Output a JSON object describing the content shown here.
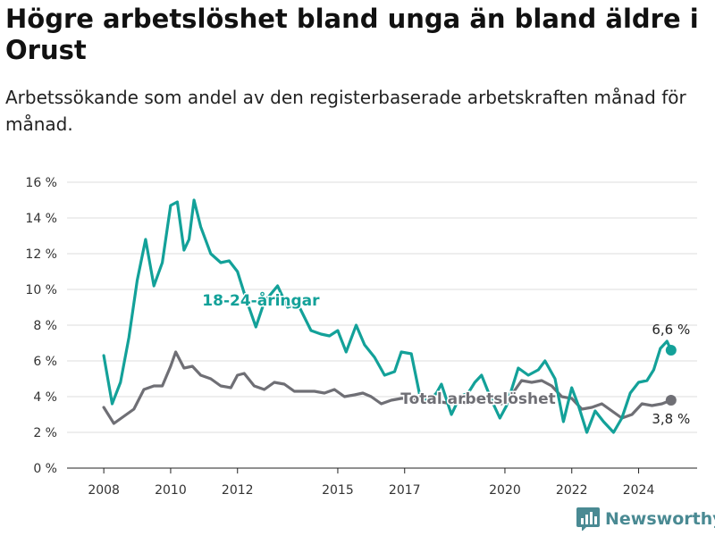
{
  "title": "Högre arbetslöshet bland unga än bland äldre i Orust",
  "subtitle": "Arbetssökande som andel av den registerbaserade arbetskraften månad för månad.",
  "brand": {
    "name": "Newsworthy"
  },
  "colors": {
    "youth": "#13a199",
    "total": "#6f6f75",
    "grid": "#dddddd",
    "axis": "#222222",
    "brand": "#4a8a93"
  },
  "chart_data": {
    "type": "line",
    "title": "Högre arbetslöshet bland unga än bland äldre i Orust",
    "subtitle": "Arbetssökande som andel av den registerbaserade arbetskraften månad för månad.",
    "y_ticks": [
      0,
      2,
      4,
      6,
      8,
      10,
      12,
      14,
      16
    ],
    "y_tick_labels": [
      "0 %",
      "2 %",
      "4 %",
      "6 %",
      "8 %",
      "10 %",
      "12 %",
      "14 %",
      "16 %"
    ],
    "x_ticks": [
      2008,
      2010,
      2012,
      2015,
      2017,
      2020,
      2022,
      2024
    ],
    "ylim": [
      0,
      16
    ],
    "xlim": [
      2006.9,
      2025.75
    ],
    "grid": true,
    "series": [
      {
        "name": "18-24-åringar",
        "color": "#13a199",
        "end_label": "6,6 %",
        "points": [
          [
            2008.0,
            6.3
          ],
          [
            2008.25,
            3.6
          ],
          [
            2008.5,
            4.8
          ],
          [
            2008.75,
            7.3
          ],
          [
            2009.0,
            10.5
          ],
          [
            2009.25,
            12.8
          ],
          [
            2009.5,
            10.2
          ],
          [
            2009.75,
            11.5
          ],
          [
            2010.0,
            14.7
          ],
          [
            2010.2,
            14.9
          ],
          [
            2010.4,
            12.2
          ],
          [
            2010.55,
            12.8
          ],
          [
            2010.7,
            15.0
          ],
          [
            2010.9,
            13.5
          ],
          [
            2011.2,
            12.0
          ],
          [
            2011.5,
            11.5
          ],
          [
            2011.75,
            11.6
          ],
          [
            2012.0,
            11.0
          ],
          [
            2012.25,
            9.5
          ],
          [
            2012.55,
            7.9
          ],
          [
            2012.8,
            9.3
          ],
          [
            2013.2,
            10.2
          ],
          [
            2013.5,
            9.0
          ],
          [
            2013.8,
            9.2
          ],
          [
            2014.2,
            7.7
          ],
          [
            2014.5,
            7.5
          ],
          [
            2014.75,
            7.4
          ],
          [
            2015.0,
            7.7
          ],
          [
            2015.25,
            6.5
          ],
          [
            2015.55,
            8.0
          ],
          [
            2015.8,
            6.9
          ],
          [
            2016.1,
            6.2
          ],
          [
            2016.4,
            5.2
          ],
          [
            2016.7,
            5.4
          ],
          [
            2016.9,
            6.5
          ],
          [
            2017.2,
            6.4
          ],
          [
            2017.45,
            4.1
          ],
          [
            2017.7,
            3.7
          ],
          [
            2017.95,
            4.2
          ],
          [
            2018.1,
            4.7
          ],
          [
            2018.4,
            3.0
          ],
          [
            2018.65,
            4.0
          ],
          [
            2018.9,
            4.2
          ],
          [
            2019.1,
            4.8
          ],
          [
            2019.3,
            5.2
          ],
          [
            2019.6,
            3.8
          ],
          [
            2019.85,
            2.8
          ],
          [
            2020.05,
            3.5
          ],
          [
            2020.4,
            5.6
          ],
          [
            2020.7,
            5.2
          ],
          [
            2021.0,
            5.5
          ],
          [
            2021.2,
            6.0
          ],
          [
            2021.5,
            5.0
          ],
          [
            2021.75,
            2.6
          ],
          [
            2022.0,
            4.5
          ],
          [
            2022.2,
            3.5
          ],
          [
            2022.45,
            2.0
          ],
          [
            2022.7,
            3.2
          ],
          [
            2022.95,
            2.6
          ],
          [
            2023.25,
            2.0
          ],
          [
            2023.5,
            2.8
          ],
          [
            2023.75,
            4.2
          ],
          [
            2024.0,
            4.8
          ],
          [
            2024.25,
            4.9
          ],
          [
            2024.45,
            5.5
          ],
          [
            2024.65,
            6.7
          ],
          [
            2024.85,
            7.1
          ],
          [
            2024.97,
            6.6
          ]
        ]
      },
      {
        "name": "Total arbetslöshet",
        "color": "#6f6f75",
        "end_label": "3,8 %",
        "points": [
          [
            2008.0,
            3.4
          ],
          [
            2008.3,
            2.5
          ],
          [
            2008.6,
            2.9
          ],
          [
            2008.9,
            3.3
          ],
          [
            2009.2,
            4.4
          ],
          [
            2009.5,
            4.6
          ],
          [
            2009.75,
            4.6
          ],
          [
            2010.0,
            5.7
          ],
          [
            2010.15,
            6.5
          ],
          [
            2010.4,
            5.6
          ],
          [
            2010.65,
            5.7
          ],
          [
            2010.9,
            5.2
          ],
          [
            2011.2,
            5.0
          ],
          [
            2011.5,
            4.6
          ],
          [
            2011.8,
            4.5
          ],
          [
            2012.0,
            5.2
          ],
          [
            2012.2,
            5.3
          ],
          [
            2012.5,
            4.6
          ],
          [
            2012.8,
            4.4
          ],
          [
            2013.1,
            4.8
          ],
          [
            2013.4,
            4.7
          ],
          [
            2013.7,
            4.3
          ],
          [
            2014.0,
            4.3
          ],
          [
            2014.3,
            4.3
          ],
          [
            2014.6,
            4.2
          ],
          [
            2014.9,
            4.4
          ],
          [
            2015.2,
            4.0
          ],
          [
            2015.5,
            4.1
          ],
          [
            2015.75,
            4.2
          ],
          [
            2016.0,
            4.0
          ],
          [
            2016.3,
            3.6
          ],
          [
            2016.6,
            3.8
          ],
          [
            2016.9,
            3.9
          ],
          [
            2017.2,
            3.9
          ],
          [
            2017.5,
            3.8
          ],
          [
            2017.8,
            3.8
          ],
          [
            2018.1,
            3.7
          ],
          [
            2018.4,
            3.6
          ],
          [
            2018.7,
            3.7
          ],
          [
            2019.0,
            3.6
          ],
          [
            2019.3,
            3.9
          ],
          [
            2019.6,
            3.8
          ],
          [
            2019.9,
            3.6
          ],
          [
            2020.2,
            4.1
          ],
          [
            2020.5,
            4.9
          ],
          [
            2020.8,
            4.8
          ],
          [
            2021.1,
            4.9
          ],
          [
            2021.4,
            4.6
          ],
          [
            2021.7,
            4.0
          ],
          [
            2022.0,
            3.9
          ],
          [
            2022.3,
            3.3
          ],
          [
            2022.6,
            3.4
          ],
          [
            2022.9,
            3.6
          ],
          [
            2023.2,
            3.2
          ],
          [
            2023.5,
            2.8
          ],
          [
            2023.8,
            3.0
          ],
          [
            2024.1,
            3.6
          ],
          [
            2024.4,
            3.5
          ],
          [
            2024.7,
            3.6
          ],
          [
            2024.97,
            3.8
          ]
        ]
      }
    ]
  }
}
